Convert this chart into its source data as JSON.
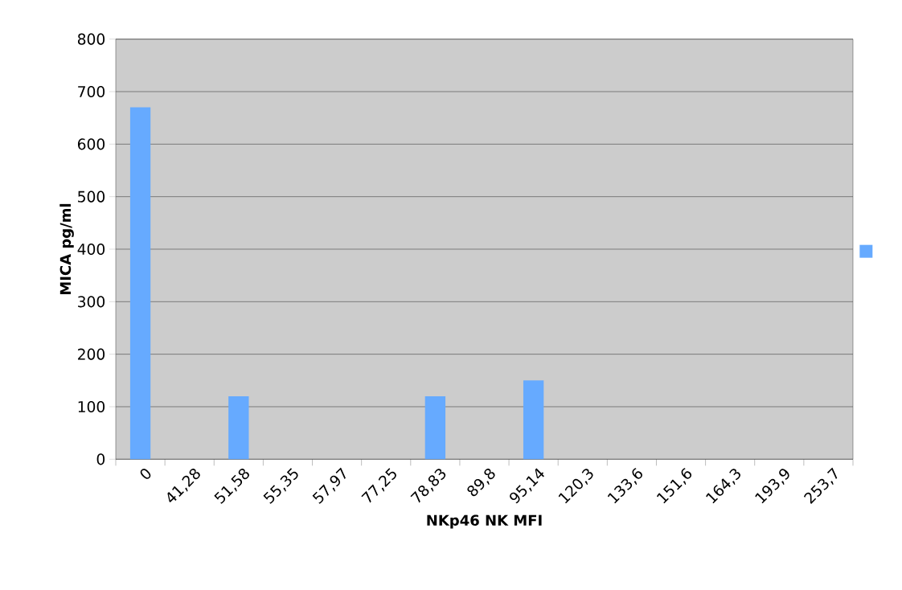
{
  "chart_data": {
    "type": "bar",
    "xlabel": "NKp46 NK MFI",
    "ylabel": "MICA pg/ml",
    "categories": [
      "0",
      "41,28",
      "51,58",
      "55,35",
      "57,97",
      "77,25",
      "78,83",
      "89,8",
      "95,14",
      "120,3",
      "133,6",
      "151,6",
      "164,3",
      "193,9",
      "253,7"
    ],
    "values": [
      670,
      null,
      120,
      null,
      null,
      null,
      120,
      null,
      150,
      null,
      null,
      null,
      null,
      null,
      null
    ],
    "color": "#66aaff",
    "ylim": [
      0,
      800
    ],
    "yticks": [
      0,
      100,
      200,
      300,
      400,
      500,
      600,
      700,
      800
    ],
    "grid": "y"
  }
}
